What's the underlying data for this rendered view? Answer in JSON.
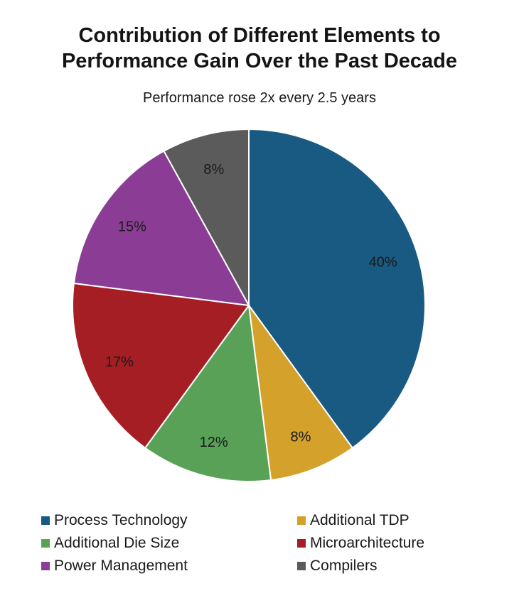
{
  "chart_data": {
    "type": "pie",
    "title_lines": [
      "Contribution of Different Elements to",
      "Performance Gain Over the Past Decade"
    ],
    "subtitle": "Performance rose 2x every 2.5 years",
    "slices": [
      {
        "name": "Process Technology",
        "value": 40,
        "label": "40%",
        "color": "#185a82"
      },
      {
        "name": "Additional TDP",
        "value": 8,
        "label": "8%",
        "color": "#d4a12a"
      },
      {
        "name": "Additional Die Size",
        "value": 12,
        "label": "12%",
        "color": "#58a157"
      },
      {
        "name": "Microarchitecture",
        "value": 17,
        "label": "17%",
        "color": "#a51e24"
      },
      {
        "name": "Power Management",
        "value": 15,
        "label": "15%",
        "color": "#8b3d95"
      },
      {
        "name": "Compilers",
        "value": 8,
        "label": "8%",
        "color": "#5b5b5b"
      }
    ],
    "legend_placement": "bottom"
  }
}
